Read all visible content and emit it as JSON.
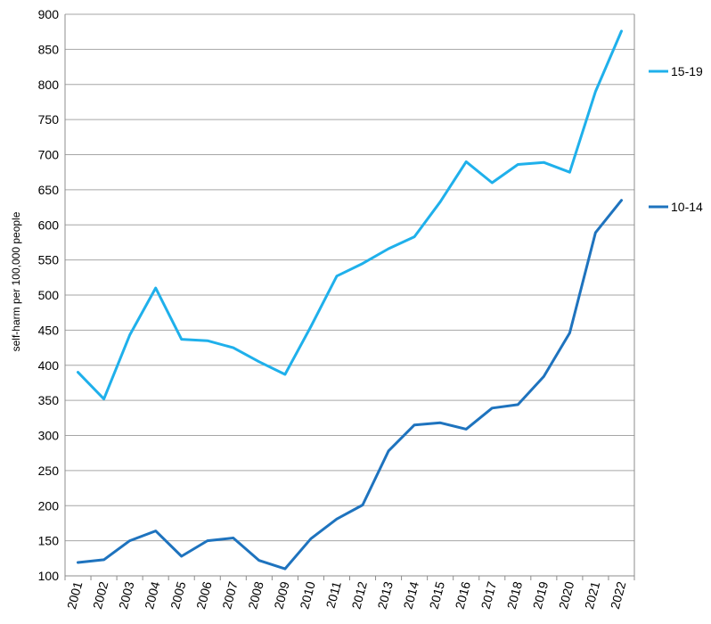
{
  "chart_data": {
    "type": "line",
    "title": "",
    "xlabel": "",
    "ylabel": "self-harm per 100,000 people",
    "x": [
      "2001",
      "2002",
      "2003",
      "2004",
      "2005",
      "2006",
      "2007",
      "2008",
      "2009",
      "2010",
      "2011",
      "2012",
      "2013",
      "2014",
      "2015",
      "2016",
      "2017",
      "2018",
      "2019",
      "2020",
      "2021",
      "2022"
    ],
    "yticks": [
      100,
      150,
      200,
      250,
      300,
      350,
      400,
      450,
      500,
      550,
      600,
      650,
      700,
      750,
      800,
      850,
      900
    ],
    "ylim": [
      100,
      900
    ],
    "grid": true,
    "legend_position": "right",
    "series": [
      {
        "name": "15-19",
        "color": "#1FB0EB",
        "values": [
          390,
          352,
          443,
          510,
          437,
          435,
          425,
          405,
          387,
          455,
          527,
          545,
          566,
          583,
          633,
          690,
          660,
          686,
          689,
          675,
          790,
          876
        ]
      },
      {
        "name": "10-14",
        "color": "#1E73BE",
        "values": [
          119,
          123,
          150,
          164,
          128,
          150,
          154,
          122,
          110,
          153,
          181,
          201,
          278,
          315,
          318,
          309,
          339,
          344,
          384,
          446,
          589,
          635
        ]
      }
    ]
  }
}
